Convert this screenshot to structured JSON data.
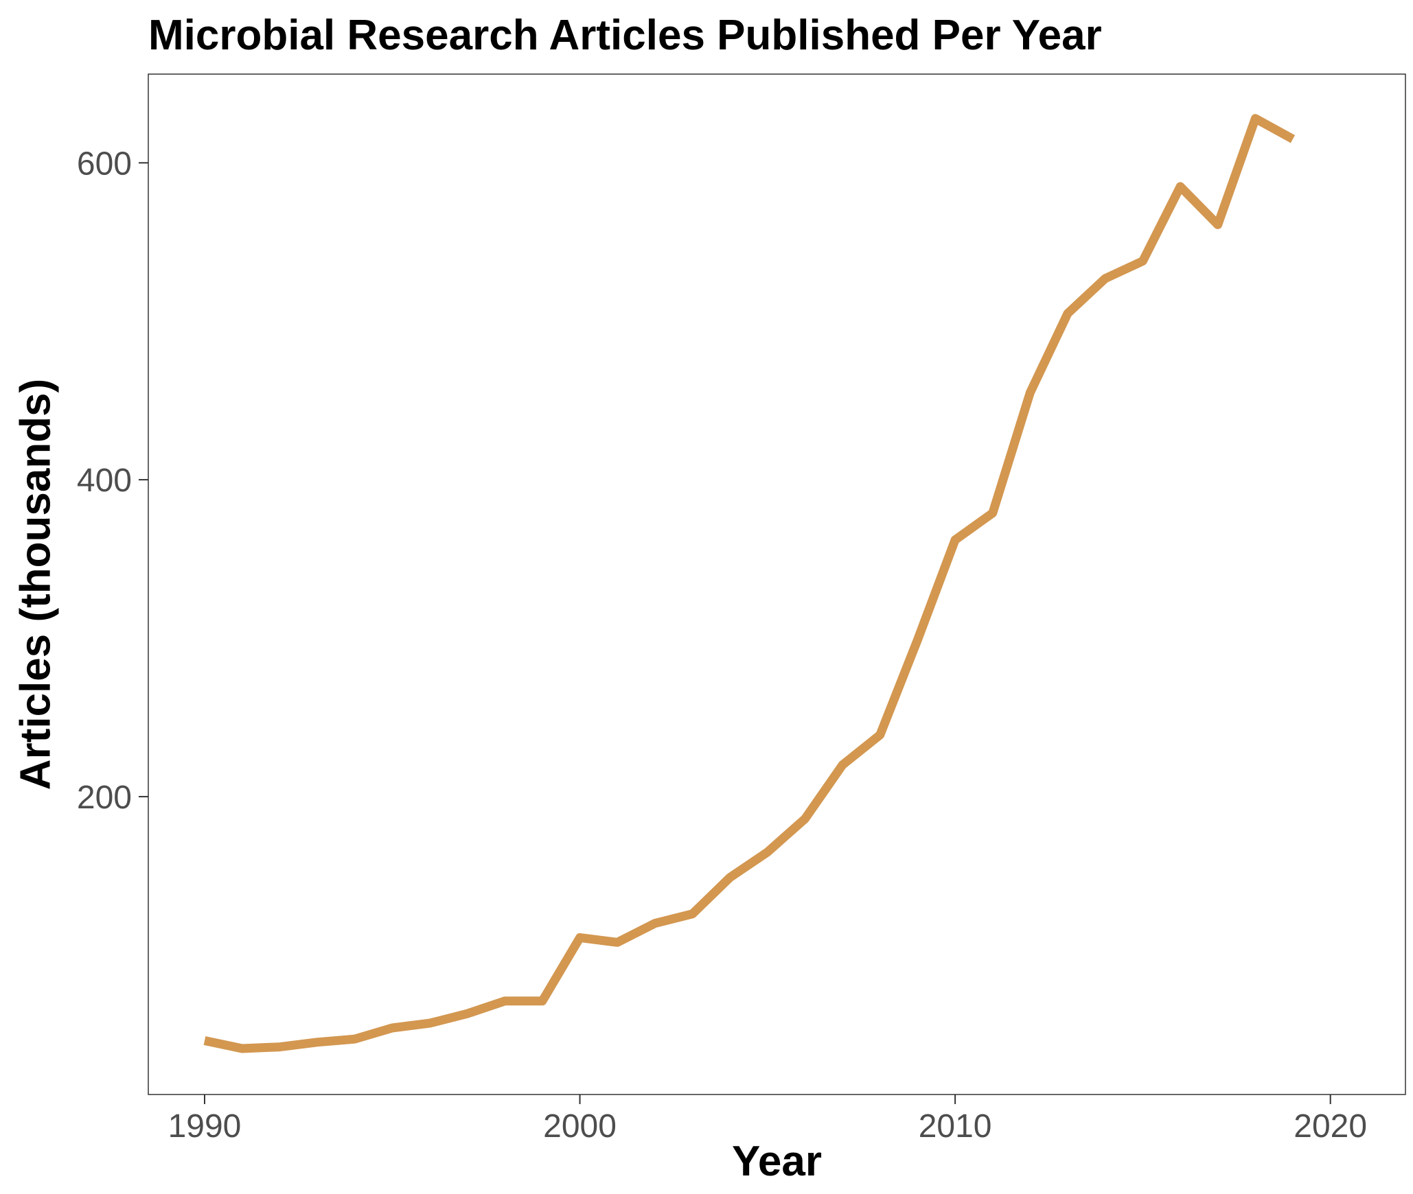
{
  "chart_data": {
    "type": "line",
    "title": "Microbial Research Articles Published Per Year",
    "xlabel": "Year",
    "ylabel": "Articles (thousands)",
    "xlim": [
      1988.5,
      2022
    ],
    "ylim": [
      12,
      656
    ],
    "xticks": [
      1990,
      2000,
      2010,
      2020
    ],
    "yticks": [
      200,
      400,
      600
    ],
    "grid": false,
    "line_color": "#d39750",
    "axis_color": "#333333",
    "tick_label_color": "#4d4d4d",
    "series": [
      {
        "x": [
          1990,
          1991,
          1992,
          1993,
          1994,
          1995,
          1996,
          1997,
          1998,
          1999,
          2000,
          2001,
          2002,
          2003,
          2004,
          2005,
          2006,
          2007,
          2008,
          2009,
          2010,
          2011,
          2012,
          2013,
          2014,
          2015,
          2016,
          2017,
          2018,
          2019
        ],
        "values": [
          46,
          41,
          42,
          45,
          47,
          54,
          57,
          63,
          71,
          71,
          111,
          108,
          120,
          126,
          149,
          165,
          186,
          220,
          239,
          299,
          362,
          379,
          455,
          505,
          527,
          538,
          585,
          561,
          628,
          615
        ]
      }
    ]
  }
}
